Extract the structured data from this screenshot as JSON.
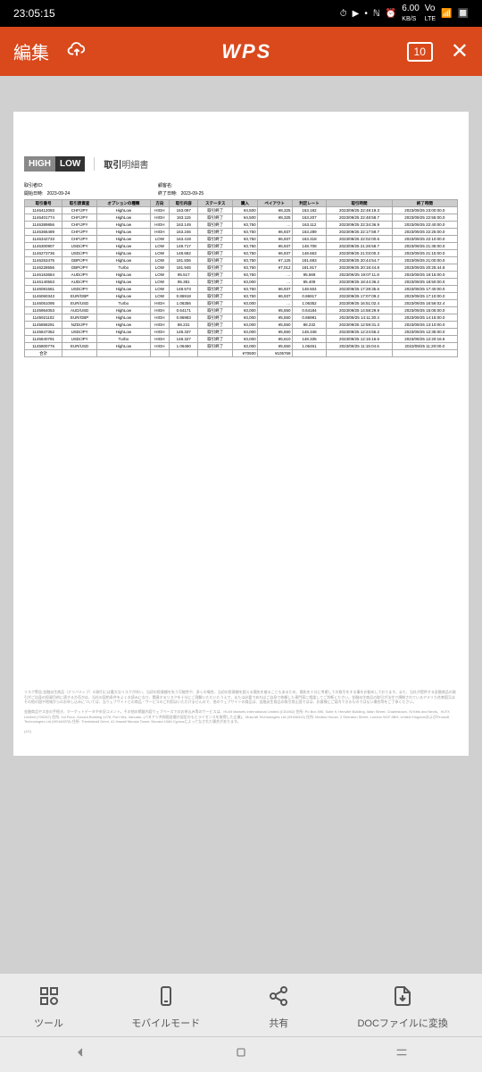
{
  "status": {
    "time": "23:05:15",
    "speed_val": "6.00",
    "speed_unit": "KB/S",
    "vo": "Vo",
    "lte": "LTE"
  },
  "header": {
    "edit": "編集",
    "logo": "WPS",
    "page": "10"
  },
  "doc": {
    "logo_high": "HIGH",
    "logo_low": "LOW",
    "title_bold": "取引",
    "title_rest": "明細書",
    "meta1_l": "取引者ID:",
    "meta1_r": "顧客名:",
    "meta2_l": "開始日時:",
    "meta2_lv": "2023-09-24",
    "meta2_r": "終了日時:",
    "meta2_rv": "2023-09-25",
    "cols": [
      "取引番号",
      "取引原資産",
      "オプションの種類",
      "方向",
      "取引内容",
      "ステータス",
      "購入",
      "ペイアウト",
      "判定レート",
      "取引時間",
      "終了時間"
    ],
    "rows": [
      [
        "1146412093",
        "CHF/JPY",
        "HighLow",
        "HIGH",
        "163.097",
        "取引終了",
        "¥4,500",
        "¥8,325",
        "163.182",
        "2023/09/25 22:49:19.3",
        "2023/09/25 23:00:00.0"
      ],
      [
        "1146401774",
        "CHF/JPY",
        "HighLow",
        "HIGH",
        "163.115",
        "取引終了",
        "¥4,500",
        "¥8,325",
        "163.207",
        "2023/09/25 22:48:58.7",
        "2023/09/25 22:55:00.0"
      ],
      [
        "1146389856",
        "CHF/JPY",
        "HighLow",
        "HIGH",
        "163.149",
        "取引終了",
        "¥3,750",
        "…",
        "163.112",
        "2023/09/25 22:34:36.9",
        "2023/09/25 22:40:00.0"
      ],
      [
        "1146366489",
        "CHF/JPY",
        "HighLow",
        "HIGH",
        "163.246",
        "取引終了",
        "¥3,750",
        "¥6,937",
        "163.289",
        "2023/09/25 22:17:59.7",
        "2023/09/25 22:25:00.0"
      ],
      [
        "1146342733",
        "CHF/JPY",
        "HighLow",
        "LOW",
        "163.419",
        "取引終了",
        "¥3,750",
        "¥6,937",
        "163.318",
        "2023/09/25 22:02:00.6",
        "2023/09/25 22:10:00.0"
      ],
      [
        "1146300907",
        "USD/JPY",
        "HighLow",
        "LOW",
        "148.717",
        "取引終了",
        "¥3,750",
        "¥6,937",
        "148.708",
        "2023/09/25 21:26:58.7",
        "2023/09/25 21:35:00.0"
      ],
      [
        "1146273736",
        "USD/JPY",
        "HighLow",
        "LOW",
        "148.682",
        "取引終了",
        "¥3,750",
        "¥6,937",
        "148.663",
        "2023/09/25 21:03:00.3",
        "2023/09/25 21:15:00.0"
      ],
      [
        "1146253475",
        "GBP/JPY",
        "HighLow",
        "LOW",
        "181.836",
        "取引終了",
        "¥3,750",
        "¥7,125",
        "181.693",
        "2023/09/25 20:44:54.7",
        "2023/09/25 21:00:00.0"
      ],
      [
        "1146228556",
        "GBP/JPY",
        "Turbo",
        "LOW",
        "181.945",
        "取引終了",
        "¥3,750",
        "¥7,012",
        "181.917",
        "2023/09/25 20:18:44.8",
        "2023/09/25 20:25:44.8"
      ],
      [
        "1146163684",
        "AUD/JPY",
        "HighLow",
        "LOW",
        "95.517",
        "取引終了",
        "¥3,750",
        "…",
        "95.569",
        "2023/09/25 19:07:11.8",
        "2023/09/25 19:15:00.0"
      ],
      [
        "1146140553",
        "AUD/JPY",
        "HighLow",
        "LOW",
        "95.381",
        "取引終了",
        "¥3,000",
        "…",
        "95.409",
        "2023/09/25 18:44:36.2",
        "2023/09/25 18:50:00.0"
      ],
      [
        "1146081561",
        "USD/JPY",
        "HighLow",
        "LOW",
        "148.573",
        "取引終了",
        "¥3,750",
        "¥6,937",
        "148.504",
        "2023/09/25 17:28:35.6",
        "2023/09/25 17:40:00.0"
      ],
      [
        "1146060343",
        "EUR/GBP",
        "HighLow",
        "LOW",
        "0.86918",
        "取引終了",
        "¥3,750",
        "¥6,937",
        "0.86917",
        "2023/09/25 17:07:09.2",
        "2023/09/25 17:10:00.0"
      ],
      [
        "1146051095",
        "EUR/USD",
        "Turbo",
        "HIGH",
        "1.06356",
        "取引終了",
        "¥3,000",
        "…",
        "1.06352",
        "2023/09/25 16:51:02.4",
        "2023/09/25 16:56:02.4"
      ],
      [
        "1145964053",
        "AUD/USD",
        "HighLow",
        "HIGH",
        "0.64171",
        "取引終了",
        "¥3,000",
        "¥5,550",
        "0.64184",
        "2023/09/25 14:58:29.9",
        "2023/09/25 15:05:00.0"
      ],
      [
        "1145921102",
        "EUR/GBP",
        "HighLow",
        "HIGH",
        "0.86983",
        "取引終了",
        "¥3,000",
        "¥5,550",
        "0.86991",
        "2023/09/25 14:11:30.4",
        "2023/09/25 14:15:00.0"
      ],
      [
        "1145858291",
        "NZD/JPY",
        "HighLow",
        "HIGH",
        "88.231",
        "取引終了",
        "¥3,000",
        "¥5,550",
        "88.232",
        "2023/09/25 12:59:31.3",
        "2023/09/25 13:10:00.0"
      ],
      [
        "1145847362",
        "USD/JPY",
        "HighLow",
        "HIGH",
        "148.337",
        "取引終了",
        "¥3,000",
        "¥5,550",
        "148.348",
        "2023/09/25 12:24:55.2",
        "2023/09/25 12:35:00.0"
      ],
      [
        "1145840791",
        "USD/JPY",
        "Turbo",
        "HIGH",
        "148.327",
        "取引終了",
        "¥3,000",
        "¥5,610",
        "148.335",
        "2023/09/25 12:15:16.6",
        "2023/09/25 12:20:16.6"
      ],
      [
        "1145800776",
        "EUR/USD",
        "HighLow",
        "HIGH",
        "1.06460",
        "取引終了",
        "¥3,000",
        "¥5,550",
        "1.06461",
        "2023/09/25 11:15:04.6",
        "2023/09/25 11:20:00.0"
      ]
    ],
    "total_label": "合計",
    "total_buy": "¥70500",
    "total_pay": "¥105769",
    "disc1": "リスク警告:金融派生商品（デリバティブ）の取引には重大なリスクが伴い、当初の投資額を失う可能性や、多くの場合、当初の投資額を超える損失を被ることもあるため、損失を十分に考慮しての取引をする事をお勧めしております。また、当社が提供する金融商品の取引がご自身の投資目的に適するか否かは、当社の契約条件をよくお読みになり、関連するリスクを十分にご理解いただいたうえで、または必要であればご自身で依頼した専門家に相談してご判断ください。金融派生商品の取引が法令で規制されているアメリカ合衆国又はその他の国や地域からのお申し込みについては、当ウェブサイトとの商品・サービスのご利用はいただけませんので、他のウェブサイトの商品は、金融派生商品の取引禁止国ではは、お客様にご案内できるものではない場合等をご了承ください。",
    "disc2": "金融商品やス金の手続き、マーケットデータや市況コメント。その他の掲載内容ウェブベースでのお申込み等のサービスは、HLMI Markets International Limited (C51982) 住所: Po Box 590, Suite 9, Henville Building, Main Street, Charlestown, St Kitts and Nevis、HLFX Limited (700287) 住所: 1st Floor, Govant Building 1276, Port Vila, Vanuatu, (バヌアツ共和国金融庁認定のもとライセンスを取得した企業)、Mulcraft Technologies Ltd (09186313) 住所: Medius House, 2 Sheraton Street, London W1F 8BH, United KingdomおよびFinosoft Technologies Ltd (HE448378) 住所: Themistokli Dervi, 41 Hawaii Nicosia Tower, Nicosia 1066 Cyprusによってなされた場合があります。",
    "page_num": "(1/1)"
  },
  "toolbar": {
    "tools": "ツール",
    "mobile": "モバイルモード",
    "share": "共有",
    "convert": "DOCファイルに変換"
  }
}
